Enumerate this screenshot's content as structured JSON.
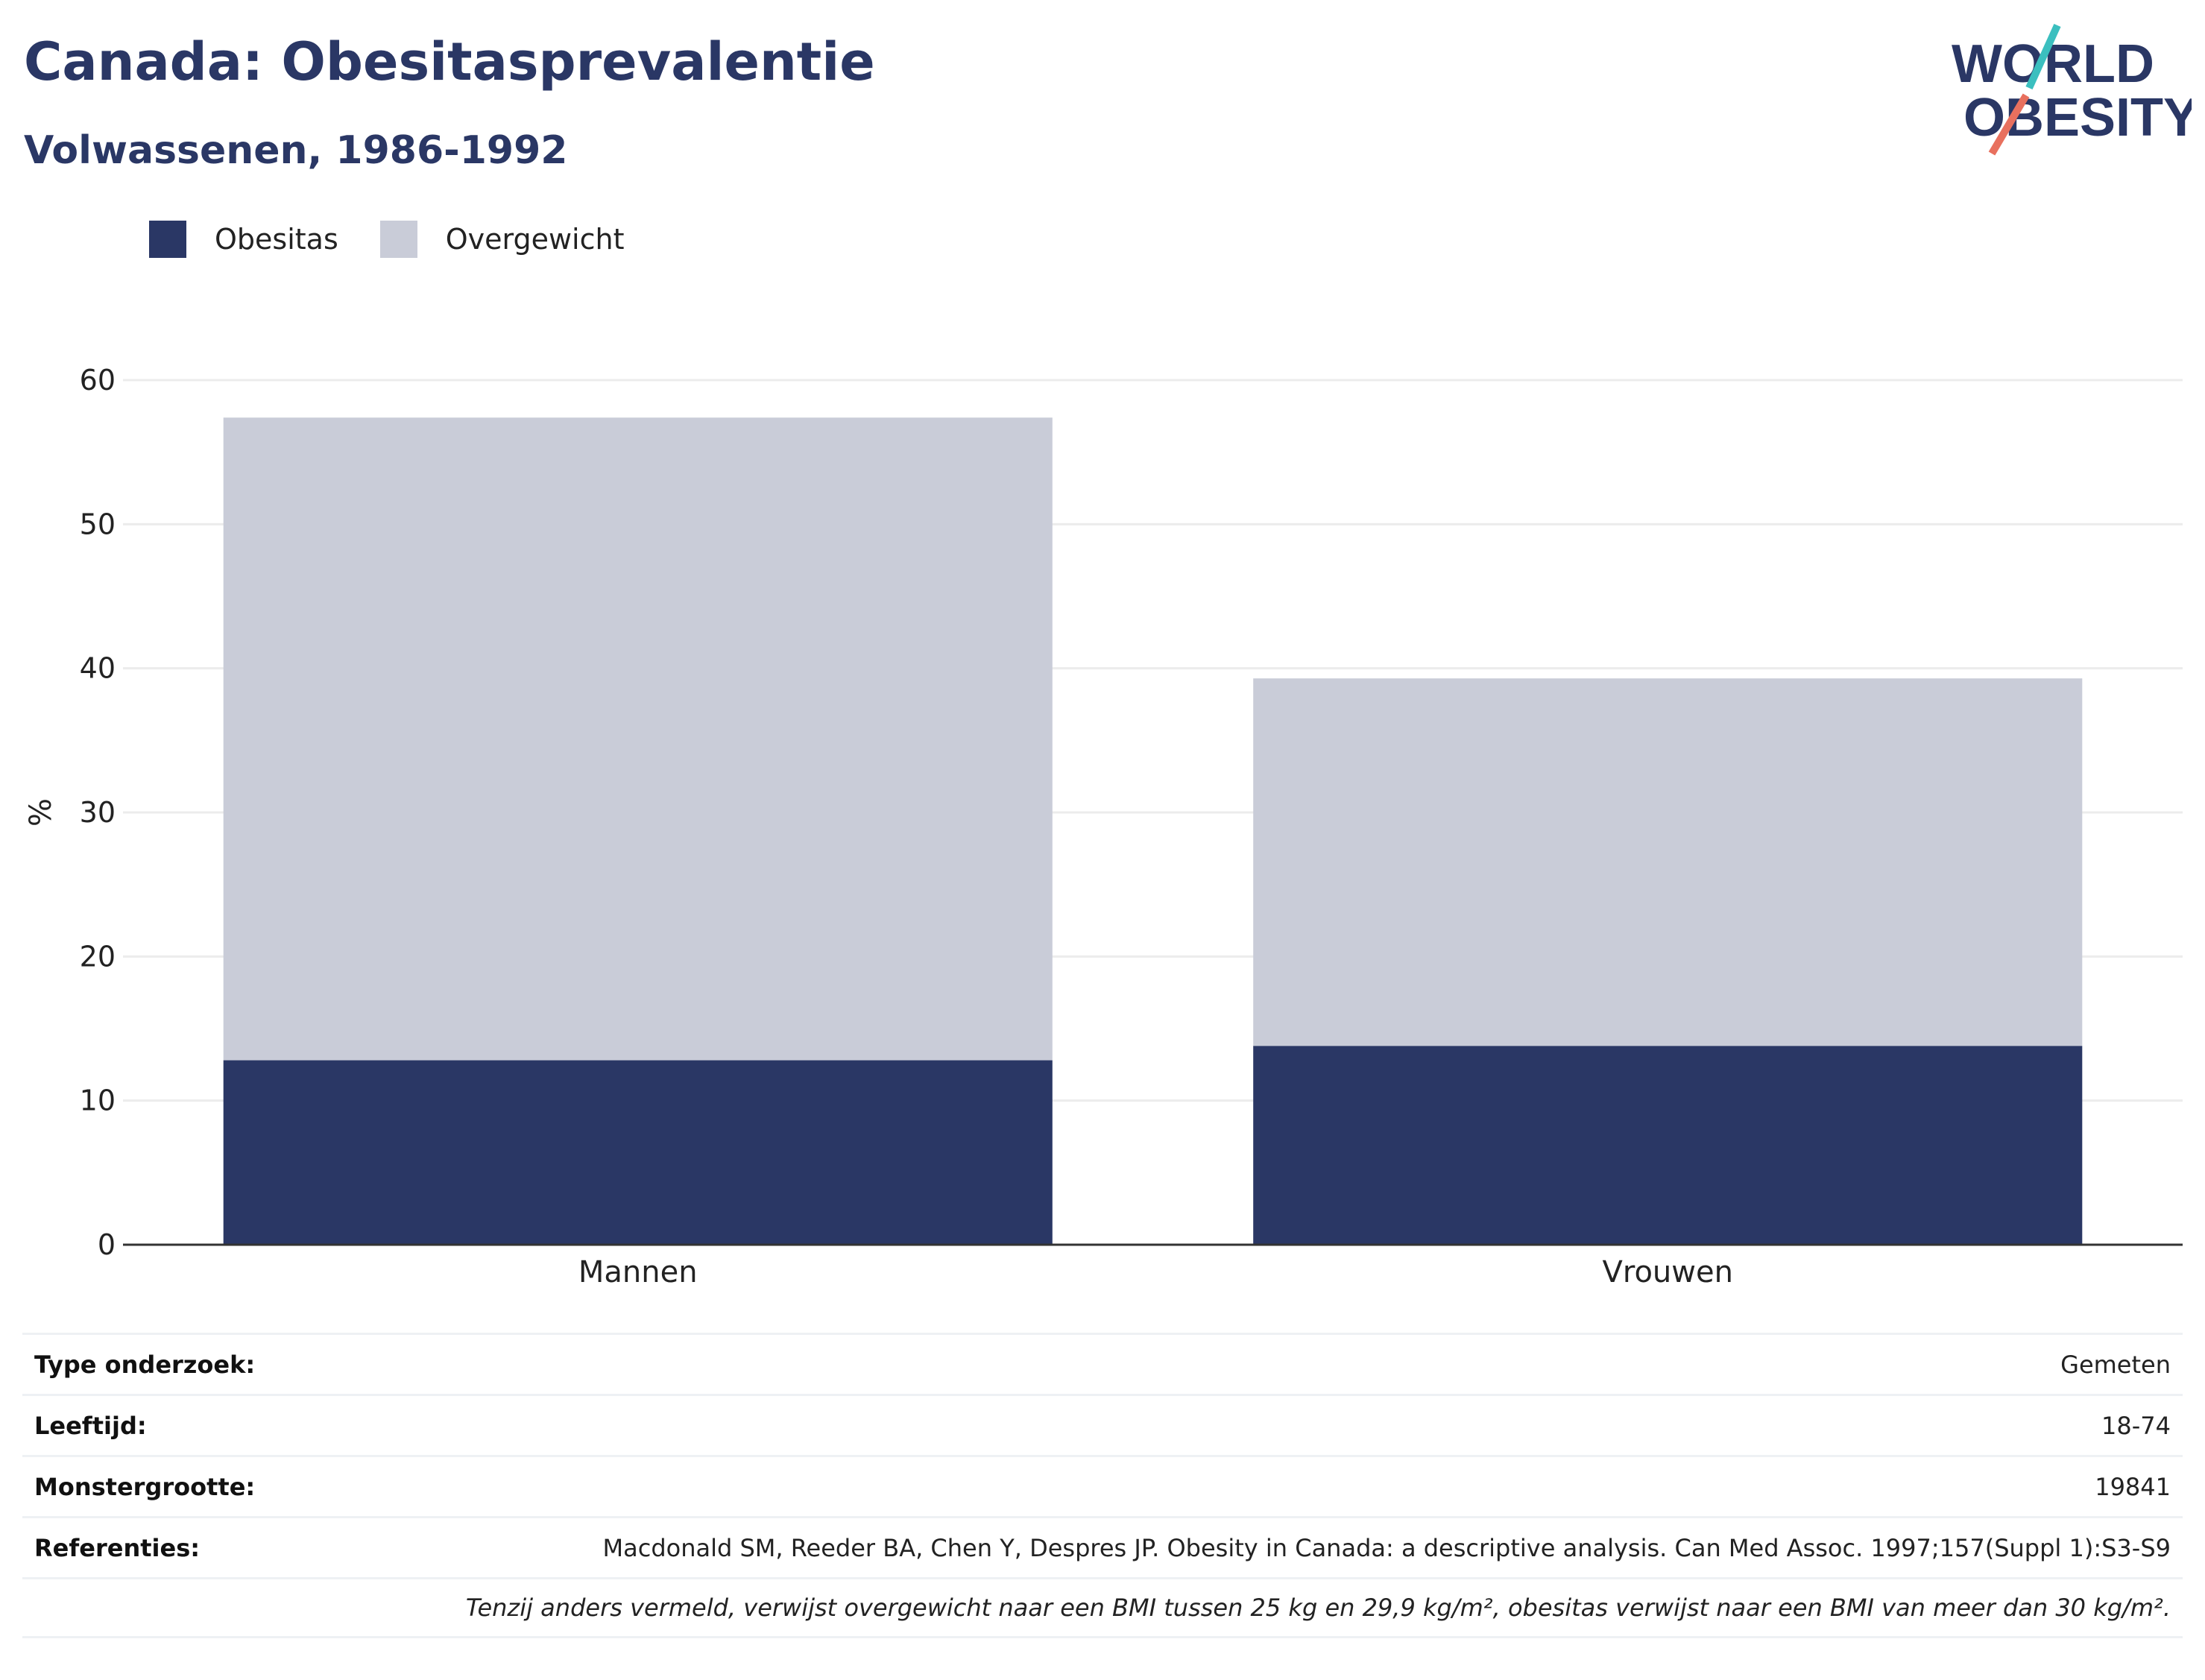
{
  "title": "Canada: Obesitasprevalentie",
  "subtitle": "Volwassenen, 1986-1992",
  "logo": {
    "line1": "WORLD",
    "line2": "OBESITY",
    "teal": "#3bbfbf",
    "coral": "#e8705e",
    "navy": "#2a3765"
  },
  "legend": [
    {
      "label": "Obesitas",
      "color": "#2a3765"
    },
    {
      "label": "Overgewicht",
      "color": "#c9ccd8"
    }
  ],
  "chart_data": {
    "type": "bar",
    "stacked": true,
    "categories": [
      "Mannen",
      "Vrouwen"
    ],
    "series": [
      {
        "name": "Obesitas",
        "values": [
          12.8,
          13.8
        ],
        "color": "#2a3765"
      },
      {
        "name": "Overgewicht",
        "values": [
          44.6,
          25.5
        ],
        "color": "#c9ccd8"
      }
    ],
    "ylabel": "%",
    "ylim": [
      0,
      60
    ],
    "yticks": [
      0,
      10,
      20,
      30,
      40,
      50,
      60
    ],
    "grid": true,
    "legend_position": "top-left"
  },
  "info": {
    "rows": [
      {
        "label": "Type onderzoek:",
        "value": "Gemeten"
      },
      {
        "label": "Leeftijd:",
        "value": "18-74"
      },
      {
        "label": "Monstergrootte:",
        "value": "19841"
      },
      {
        "label": "Referenties:",
        "value": "Macdonald SM, Reeder BA, Chen Y, Despres JP. Obesity in Canada: a descriptive analysis. Can Med Assoc. 1997;157(Suppl 1):S3-S9"
      }
    ],
    "note": "Tenzij anders vermeld, verwijst overgewicht naar een BMI tussen 25 kg en 29,9 kg/m², obesitas verwijst naar een BMI van meer dan 30 kg/m²."
  }
}
